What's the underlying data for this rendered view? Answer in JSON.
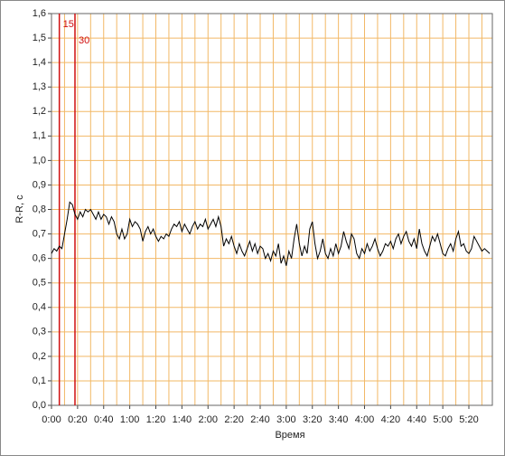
{
  "chart_data": {
    "type": "line",
    "xlabel": "Время",
    "ylabel": "R-R, с",
    "color": "#000000",
    "grid": true,
    "grid_color": "#f2b866",
    "xlim": [
      0,
      338
    ],
    "ylim": [
      0,
      1.6
    ],
    "xticks": [
      {
        "value": 0,
        "label": "0:00"
      },
      {
        "value": 20,
        "label": "0:20"
      },
      {
        "value": 40,
        "label": "0:40"
      },
      {
        "value": 60,
        "label": "1:00"
      },
      {
        "value": 80,
        "label": "1:20"
      },
      {
        "value": 100,
        "label": "1:40"
      },
      {
        "value": 120,
        "label": "2:00"
      },
      {
        "value": 140,
        "label": "2:20"
      },
      {
        "value": 160,
        "label": "2:40"
      },
      {
        "value": 180,
        "label": "3:00"
      },
      {
        "value": 200,
        "label": "3:20"
      },
      {
        "value": 220,
        "label": "3:40"
      },
      {
        "value": 240,
        "label": "4:00"
      },
      {
        "value": 260,
        "label": "4:20"
      },
      {
        "value": 280,
        "label": "4:40"
      },
      {
        "value": 300,
        "label": "5:00"
      },
      {
        "value": 320,
        "label": "5:20"
      }
    ],
    "x_minor_ticks": [
      10,
      30,
      50,
      70,
      90,
      110,
      130,
      150,
      170,
      190,
      210,
      230,
      250,
      270,
      290,
      310,
      330
    ],
    "yticks": [
      {
        "value": 0,
        "label": "0,0"
      },
      {
        "value": 0.1,
        "label": "0,1"
      },
      {
        "value": 0.2,
        "label": "0,2"
      },
      {
        "value": 0.3,
        "label": "0,3"
      },
      {
        "value": 0.4,
        "label": "0,4"
      },
      {
        "value": 0.5,
        "label": "0,5"
      },
      {
        "value": 0.6,
        "label": "0,6"
      },
      {
        "value": 0.7,
        "label": "0,7"
      },
      {
        "value": 0.8,
        "label": "0,8"
      },
      {
        "value": 0.9,
        "label": "0,9"
      },
      {
        "value": 1,
        "label": "1,0"
      },
      {
        "value": 1.1,
        "label": "1,1"
      },
      {
        "value": 1.2,
        "label": "1,2"
      },
      {
        "value": 1.3,
        "label": "1,3"
      },
      {
        "value": 1.4,
        "label": "1,4"
      },
      {
        "value": 1.5,
        "label": "1,5"
      },
      {
        "value": 1.6,
        "label": "1,6"
      }
    ],
    "markers": [
      {
        "x": 6,
        "label": "15",
        "color": "#d01010"
      },
      {
        "x": 18,
        "label": "30",
        "color": "#d01010"
      }
    ],
    "x": [
      0,
      2,
      4,
      6,
      8,
      10,
      12,
      14,
      16,
      18,
      20,
      22,
      24,
      26,
      28,
      30,
      32,
      34,
      36,
      38,
      40,
      42,
      44,
      46,
      48,
      50,
      52,
      54,
      56,
      58,
      60,
      62,
      64,
      66,
      68,
      70,
      72,
      74,
      76,
      78,
      80,
      82,
      84,
      86,
      88,
      90,
      92,
      94,
      96,
      98,
      100,
      102,
      104,
      106,
      108,
      110,
      112,
      114,
      116,
      118,
      120,
      122,
      124,
      126,
      128,
      130,
      132,
      134,
      136,
      138,
      140,
      142,
      144,
      146,
      148,
      150,
      152,
      154,
      156,
      158,
      160,
      162,
      164,
      166,
      168,
      170,
      172,
      174,
      176,
      178,
      180,
      182,
      184,
      186,
      188,
      190,
      192,
      194,
      196,
      198,
      200,
      202,
      204,
      206,
      208,
      210,
      212,
      214,
      216,
      218,
      220,
      222,
      224,
      226,
      228,
      230,
      232,
      234,
      236,
      238,
      240,
      242,
      244,
      246,
      248,
      250,
      252,
      254,
      256,
      258,
      260,
      262,
      264,
      266,
      268,
      270,
      272,
      274,
      276,
      278,
      280,
      282,
      284,
      286,
      288,
      290,
      292,
      294,
      296,
      298,
      300,
      302,
      304,
      306,
      308,
      310,
      312,
      314,
      316,
      318,
      320,
      322,
      324,
      326,
      328,
      330,
      332,
      334,
      336
    ],
    "values": [
      0.62,
      0.64,
      0.63,
      0.65,
      0.64,
      0.7,
      0.76,
      0.83,
      0.82,
      0.78,
      0.76,
      0.79,
      0.77,
      0.8,
      0.79,
      0.8,
      0.78,
      0.76,
      0.79,
      0.76,
      0.78,
      0.77,
      0.74,
      0.77,
      0.75,
      0.7,
      0.68,
      0.72,
      0.68,
      0.7,
      0.76,
      0.73,
      0.75,
      0.74,
      0.72,
      0.67,
      0.71,
      0.73,
      0.7,
      0.72,
      0.69,
      0.67,
      0.69,
      0.68,
      0.7,
      0.69,
      0.72,
      0.74,
      0.73,
      0.75,
      0.71,
      0.74,
      0.72,
      0.7,
      0.73,
      0.75,
      0.72,
      0.74,
      0.73,
      0.76,
      0.72,
      0.74,
      0.76,
      0.73,
      0.77,
      0.73,
      0.65,
      0.68,
      0.66,
      0.69,
      0.65,
      0.62,
      0.66,
      0.63,
      0.61,
      0.64,
      0.67,
      0.63,
      0.66,
      0.62,
      0.65,
      0.64,
      0.6,
      0.62,
      0.59,
      0.63,
      0.61,
      0.66,
      0.58,
      0.61,
      0.57,
      0.63,
      0.6,
      0.68,
      0.74,
      0.66,
      0.61,
      0.65,
      0.62,
      0.72,
      0.75,
      0.66,
      0.6,
      0.63,
      0.68,
      0.62,
      0.6,
      0.64,
      0.61,
      0.66,
      0.62,
      0.65,
      0.71,
      0.67,
      0.64,
      0.7,
      0.68,
      0.62,
      0.6,
      0.64,
      0.62,
      0.66,
      0.63,
      0.65,
      0.68,
      0.64,
      0.61,
      0.63,
      0.66,
      0.65,
      0.67,
      0.64,
      0.68,
      0.7,
      0.66,
      0.69,
      0.71,
      0.67,
      0.65,
      0.68,
      0.64,
      0.72,
      0.66,
      0.63,
      0.61,
      0.65,
      0.69,
      0.67,
      0.7,
      0.66,
      0.62,
      0.61,
      0.64,
      0.66,
      0.63,
      0.68,
      0.71,
      0.65,
      0.66,
      0.63,
      0.62,
      0.64,
      0.69,
      0.67,
      0.65,
      0.63,
      0.64,
      0.63,
      0.62
    ]
  }
}
